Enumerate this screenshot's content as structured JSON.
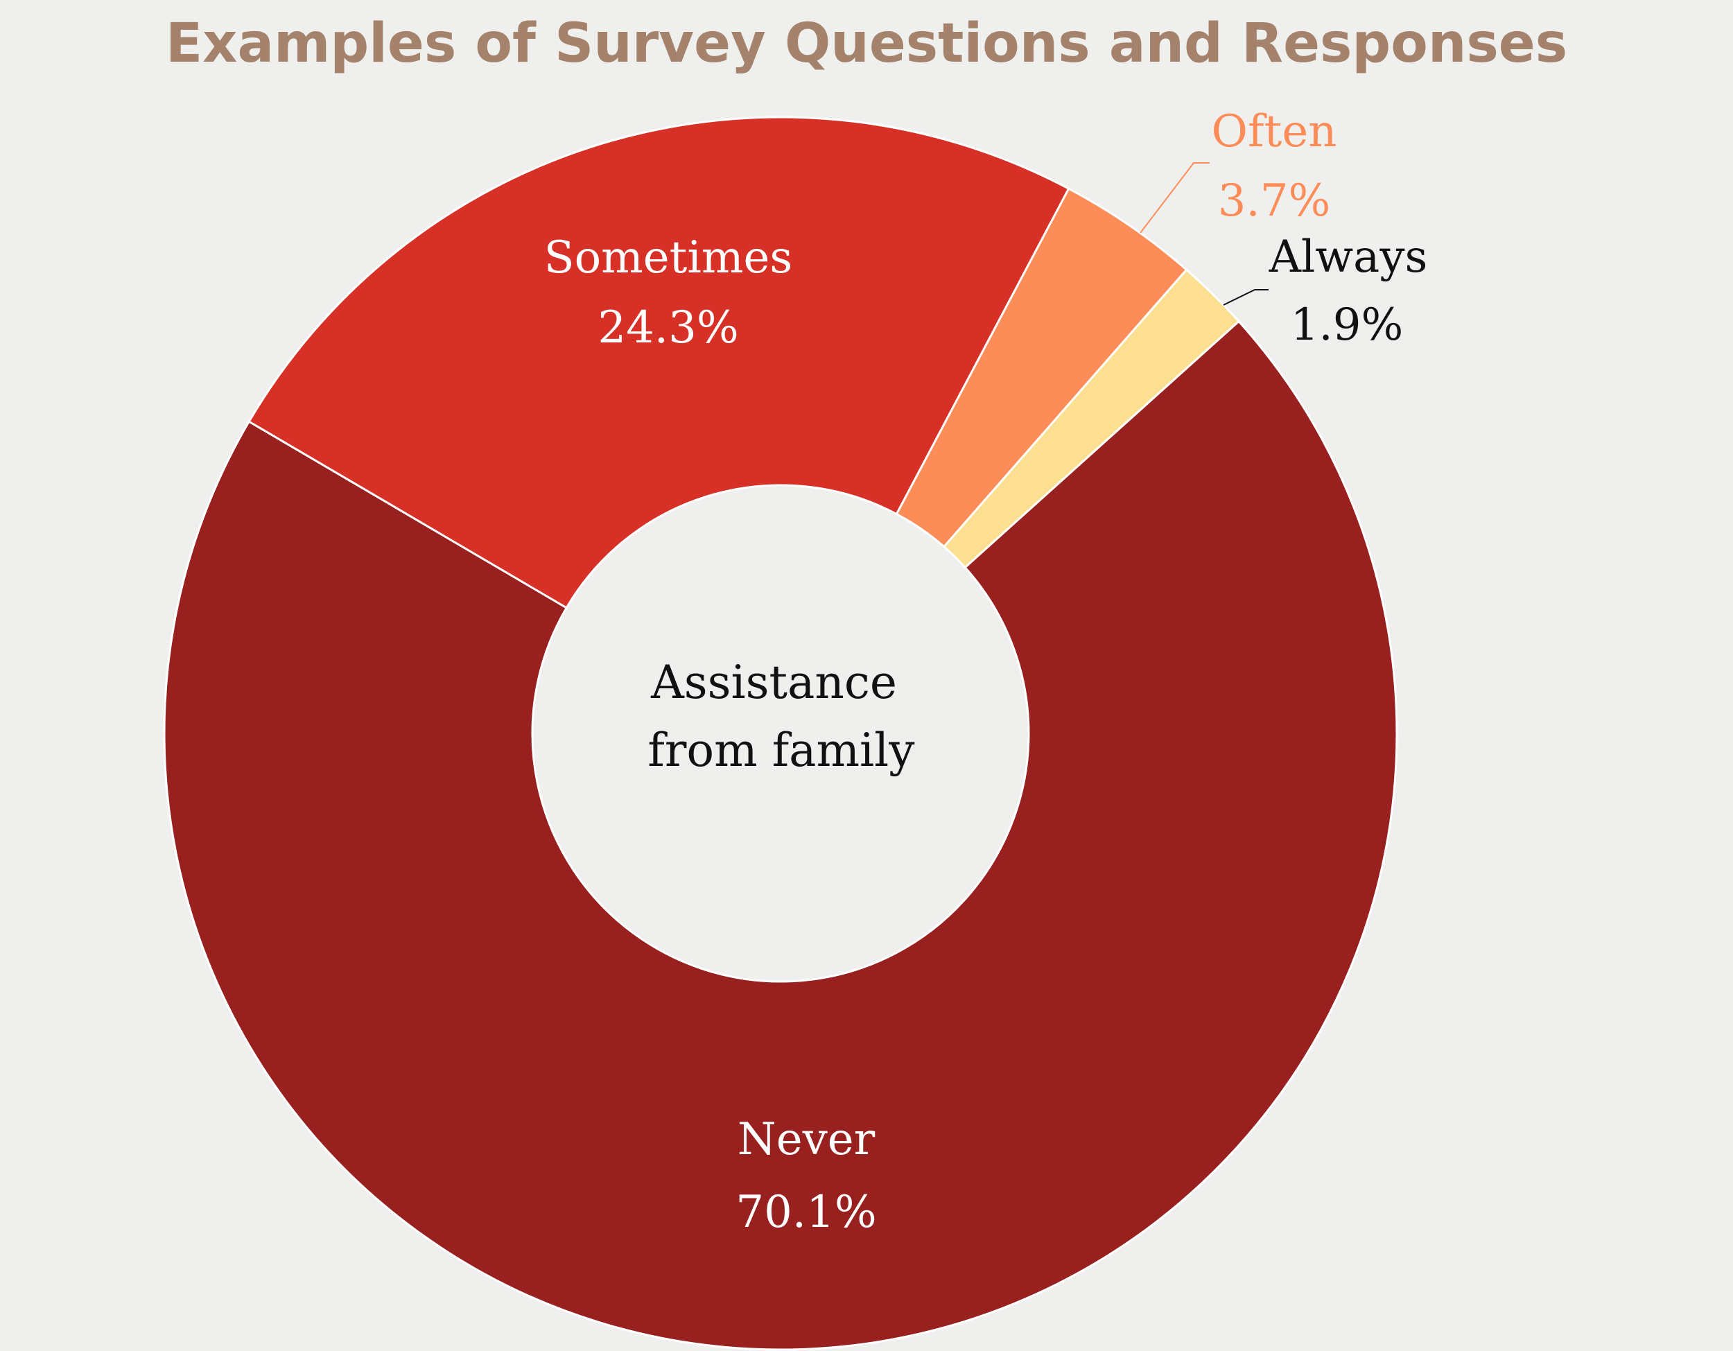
{
  "chart_data": {
    "type": "pie",
    "title": "Examples of Survey Questions and Responses",
    "center_label_lines": [
      "Assistance",
      "from family"
    ],
    "slices": [
      {
        "name": "Always",
        "value": 1.9,
        "label": "1.9%",
        "color": "#fddf92",
        "label_color": "#111111"
      },
      {
        "name": "Never",
        "value": 70.1,
        "label": "70.1%",
        "color": "#98201e",
        "label_color": "#ffffff"
      },
      {
        "name": "Sometimes",
        "value": 24.3,
        "label": "24.3%",
        "color": "#d73127",
        "label_color": "#ffffff"
      },
      {
        "name": "Often",
        "value": 3.7,
        "label": "3.7%",
        "color": "#fc8d59",
        "label_color": "#fc8d59"
      }
    ],
    "start_angle_deg": 41.2,
    "direction": "clockwise",
    "hole": "donut",
    "legend": "none"
  }
}
